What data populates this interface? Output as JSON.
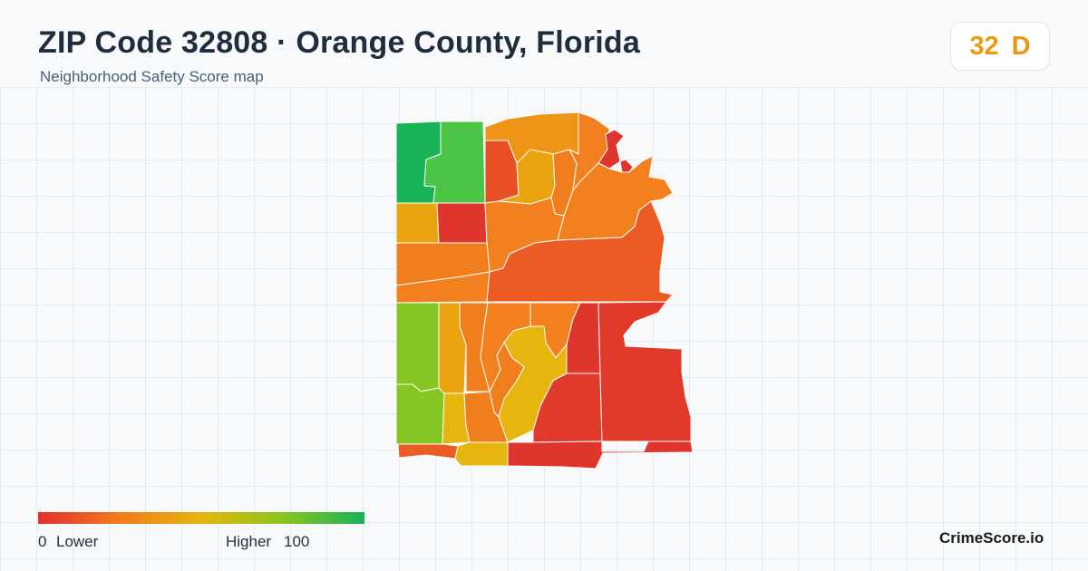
{
  "header": {
    "title": "ZIP Code 32808 · Orange County, Florida",
    "subtitle": "Neighborhood Safety Score map"
  },
  "score": {
    "value": "32",
    "grade": "D",
    "color": "#ea9a12"
  },
  "legend": {
    "min_value": "0",
    "min_label": "Lower",
    "max_label": "Higher",
    "max_value": "100",
    "gradient_colors": [
      "#e3302d",
      "#f07c1c",
      "#e6b60f",
      "#88c61f",
      "#18b257"
    ]
  },
  "brand": "CrimeScore.io",
  "map": {
    "subject": "ZIP 32808 neighborhoods shaded by safety score",
    "color_scale": {
      "red": "#e0352c",
      "red_orange": "#ec5b24",
      "orange": "#f2801f",
      "dark_orange": "#ef9416",
      "amber": "#eaa40f",
      "yellow": "#e6b80f",
      "light_green": "#86c623",
      "green": "#4cc446",
      "dark_green": "#18b257"
    }
  }
}
